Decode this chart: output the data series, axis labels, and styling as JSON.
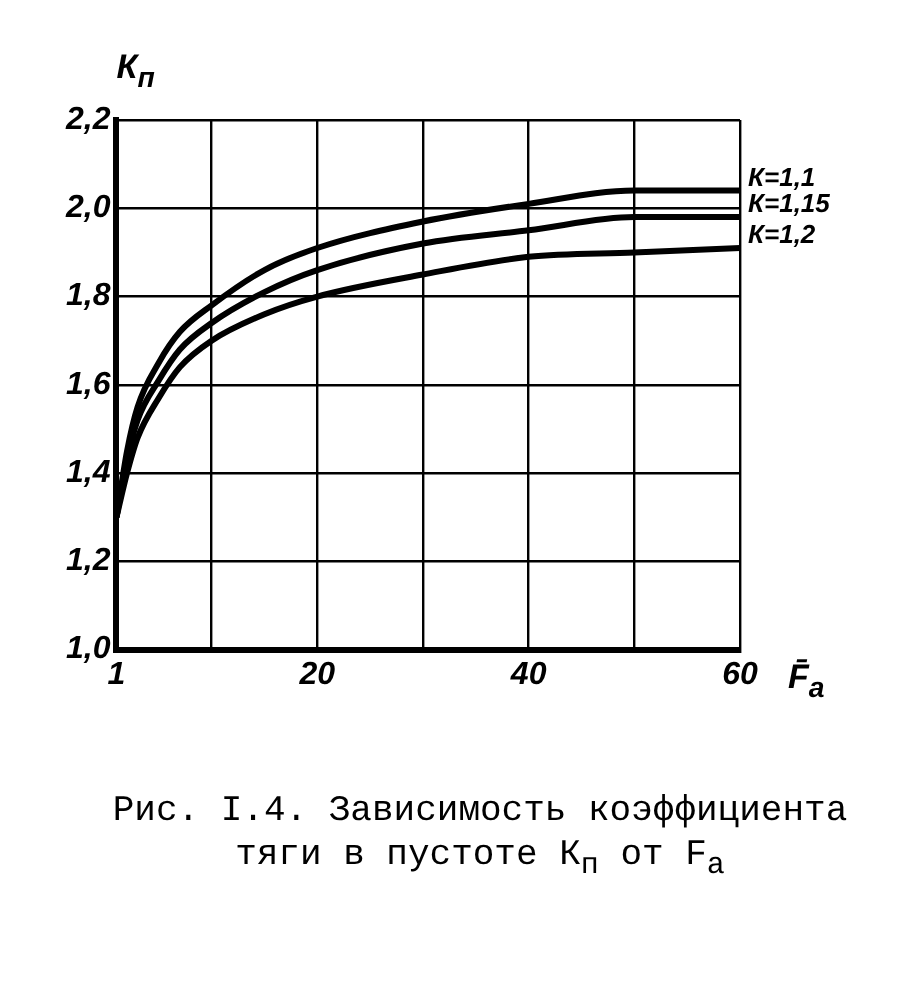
{
  "chart_data": {
    "type": "line",
    "xlabel": "F̄$_{a}$",
    "ylabel": "К$_{п}$",
    "annotations": [
      "Рис. I.4. Зависимость коэффициента тяги в пустоте К$_{п}$ от F$_{a}$"
    ],
    "x": [
      1,
      2,
      3,
      5,
      7,
      10,
      15,
      20,
      30,
      40,
      50,
      60
    ],
    "series": [
      {
        "name": "К=1,1",
        "color": "#000000",
        "values": [
          1.3,
          1.45,
          1.55,
          1.65,
          1.72,
          1.78,
          1.86,
          1.91,
          1.97,
          2.01,
          2.04,
          2.04
        ]
      },
      {
        "name": "К=1,15",
        "color": "#000000",
        "values": [
          1.3,
          1.43,
          1.52,
          1.61,
          1.68,
          1.74,
          1.81,
          1.86,
          1.92,
          1.95,
          1.98,
          1.98
        ]
      },
      {
        "name": "К=1,2",
        "color": "#000000",
        "values": [
          1.3,
          1.4,
          1.48,
          1.57,
          1.64,
          1.7,
          1.76,
          1.8,
          1.85,
          1.89,
          1.9,
          1.91
        ]
      }
    ],
    "xlim": [
      1,
      60
    ],
    "xticks": [
      1,
      {
        "value": 10,
        "label": null
      },
      20,
      {
        "value": 30,
        "label": null
      },
      40,
      {
        "value": 50,
        "label": null
      },
      60
    ],
    "ylim": [
      1.0,
      2.2
    ],
    "yticks": [
      {
        "value": 1.0,
        "label": "1,0"
      },
      {
        "value": 1.2,
        "label": "1,2"
      },
      {
        "value": 1.4,
        "label": "1,4"
      },
      {
        "value": 1.6,
        "label": "1,6"
      },
      {
        "value": 1.8,
        "label": "1,8"
      },
      {
        "value": 2.0,
        "label": "2,0"
      },
      {
        "value": 2.2,
        "label": "2,2"
      }
    ],
    "grid": true,
    "legend": false,
    "marker": "none",
    "line_style": "solid"
  }
}
